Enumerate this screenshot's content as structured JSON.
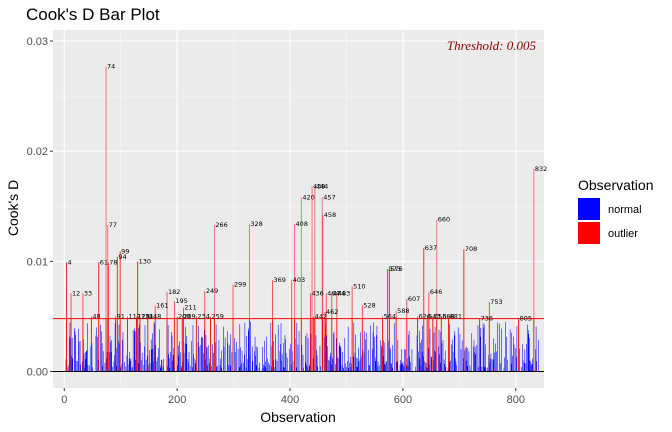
{
  "chart_data": {
    "type": "bar",
    "title": "Cook's D Bar Plot",
    "xlabel": "Observation",
    "ylabel": "Cook's D",
    "xlim": [
      -20,
      850
    ],
    "ylim": [
      -0.0015,
      0.031
    ],
    "x_ticks": [
      0,
      200,
      400,
      600,
      800
    ],
    "x_tick_labels": [
      "0",
      "200",
      "400",
      "600",
      "800"
    ],
    "y_ticks": [
      0.0,
      0.01,
      0.02,
      0.03
    ],
    "y_tick_labels": [
      "0.00",
      "0.01",
      "0.02",
      "0.03"
    ],
    "grid": true,
    "threshold": {
      "value": 0.0048,
      "label": "Threshold: 0.005",
      "color": "#ff0000"
    },
    "legend": {
      "title": "Observation",
      "placement": "right",
      "entries": [
        {
          "label": "normal",
          "color": "#0000ff"
        },
        {
          "label": "outlier",
          "color": "#ff0000"
        }
      ]
    },
    "outliers": [
      {
        "x": 4,
        "y": 0.0099,
        "label": "4"
      },
      {
        "x": 12,
        "y": 0.0071,
        "label": "12"
      },
      {
        "x": 33,
        "y": 0.0071,
        "label": "33"
      },
      {
        "x": 48,
        "y": 0.005,
        "label": "48"
      },
      {
        "x": 61,
        "y": 0.0099,
        "label": "61"
      },
      {
        "x": 74,
        "y": 0.0277,
        "label": "74"
      },
      {
        "x": 77,
        "y": 0.0133,
        "label": "77"
      },
      {
        "x": 78,
        "y": 0.0099,
        "label": "78"
      },
      {
        "x": 91,
        "y": 0.005,
        "label": "91"
      },
      {
        "x": 94,
        "y": 0.0104,
        "label": "94"
      },
      {
        "x": 99,
        "y": 0.0109,
        "label": "99"
      },
      {
        "x": 112,
        "y": 0.005,
        "label": "112"
      },
      {
        "x": 128,
        "y": 0.005,
        "label": "128"
      },
      {
        "x": 130,
        "y": 0.01,
        "label": "130"
      },
      {
        "x": 134,
        "y": 0.005,
        "label": "134"
      },
      {
        "x": 148,
        "y": 0.005,
        "label": "148"
      },
      {
        "x": 161,
        "y": 0.006,
        "label": "161"
      },
      {
        "x": 182,
        "y": 0.0072,
        "label": "182"
      },
      {
        "x": 195,
        "y": 0.0064,
        "label": "195"
      },
      {
        "x": 200,
        "y": 0.005,
        "label": "200"
      },
      {
        "x": 209,
        "y": 0.005,
        "label": "209"
      },
      {
        "x": 211,
        "y": 0.0058,
        "label": "211"
      },
      {
        "x": 234,
        "y": 0.005,
        "label": "234"
      },
      {
        "x": 249,
        "y": 0.0073,
        "label": "249"
      },
      {
        "x": 259,
        "y": 0.005,
        "label": "259"
      },
      {
        "x": 266,
        "y": 0.0133,
        "label": "266"
      },
      {
        "x": 299,
        "y": 0.0079,
        "label": "299"
      },
      {
        "x": 328,
        "y": 0.0134,
        "label": "328"
      },
      {
        "x": 369,
        "y": 0.0083,
        "label": "369"
      },
      {
        "x": 403,
        "y": 0.0083,
        "label": "403"
      },
      {
        "x": 408,
        "y": 0.0134,
        "label": "408"
      },
      {
        "x": 420,
        "y": 0.0158,
        "label": "420"
      },
      {
        "x": 436,
        "y": 0.0071,
        "label": "436"
      },
      {
        "x": 439,
        "y": 0.0168,
        "label": "439"
      },
      {
        "x": 442,
        "y": 0.005,
        "label": "442"
      },
      {
        "x": 444,
        "y": 0.0168,
        "label": "444"
      },
      {
        "x": 457,
        "y": 0.0158,
        "label": "457"
      },
      {
        "x": 458,
        "y": 0.0142,
        "label": "458"
      },
      {
        "x": 462,
        "y": 0.0054,
        "label": "462"
      },
      {
        "x": 464,
        "y": 0.0071,
        "label": "464"
      },
      {
        "x": 474,
        "y": 0.0071,
        "label": "474"
      },
      {
        "x": 483,
        "y": 0.0071,
        "label": "483"
      },
      {
        "x": 510,
        "y": 0.0077,
        "label": "510"
      },
      {
        "x": 528,
        "y": 0.006,
        "label": "528"
      },
      {
        "x": 564,
        "y": 0.005,
        "label": "564"
      },
      {
        "x": 573,
        "y": 0.0093,
        "label": "573"
      },
      {
        "x": 576,
        "y": 0.0093,
        "label": "576"
      },
      {
        "x": 588,
        "y": 0.0055,
        "label": "588"
      },
      {
        "x": 607,
        "y": 0.0066,
        "label": "607"
      },
      {
        "x": 626,
        "y": 0.005,
        "label": "626"
      },
      {
        "x": 637,
        "y": 0.0112,
        "label": "637"
      },
      {
        "x": 643,
        "y": 0.005,
        "label": "643"
      },
      {
        "x": 646,
        "y": 0.0072,
        "label": "646"
      },
      {
        "x": 653,
        "y": 0.005,
        "label": "653"
      },
      {
        "x": 660,
        "y": 0.0138,
        "label": "660"
      },
      {
        "x": 668,
        "y": 0.005,
        "label": "668"
      },
      {
        "x": 681,
        "y": 0.005,
        "label": "681"
      },
      {
        "x": 708,
        "y": 0.0111,
        "label": "708"
      },
      {
        "x": 736,
        "y": 0.0048,
        "label": "736"
      },
      {
        "x": 753,
        "y": 0.0063,
        "label": "753"
      },
      {
        "x": 805,
        "y": 0.0048,
        "label": "805"
      },
      {
        "x": 832,
        "y": 0.0184,
        "label": "832"
      }
    ],
    "normal_summary": {
      "n_observations": 840,
      "typical_range": [
        0,
        0.0045
      ],
      "note": "dense cluster of small blue bars; values approximated"
    }
  }
}
